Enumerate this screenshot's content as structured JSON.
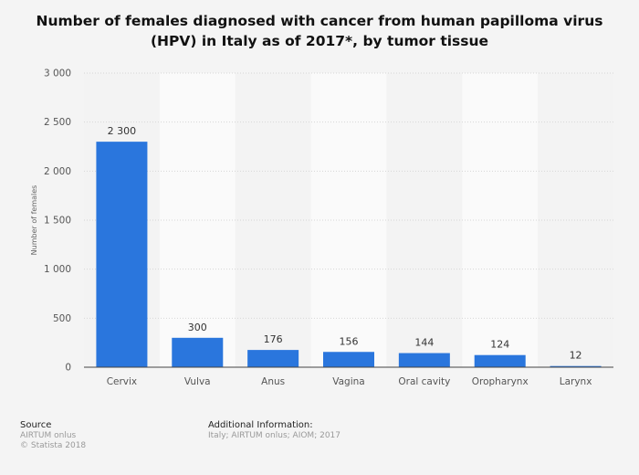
{
  "title_line1": "Number of females diagnosed with cancer from human papilloma virus",
  "title_line2": "(HPV) in Italy as of 2017*, by tumor tissue",
  "chart_data": {
    "type": "bar",
    "categories": [
      "Cervix",
      "Vulva",
      "Anus",
      "Vagina",
      "Oral cavity",
      "Oropharynx",
      "Larynx"
    ],
    "values": [
      2300,
      300,
      176,
      156,
      144,
      124,
      12
    ],
    "value_labels": [
      "2 300",
      "300",
      "176",
      "156",
      "144",
      "124",
      "12"
    ],
    "ylabel": "Number of females",
    "xlabel": "",
    "ylim": [
      0,
      3000
    ],
    "yticks": [
      0,
      500,
      1000,
      1500,
      2000,
      2500,
      3000
    ],
    "ytick_labels": [
      "0",
      "500",
      "1 000",
      "1 500",
      "2 000",
      "2 500",
      "3 000"
    ],
    "grid": true,
    "bar_color": "#2a76dd"
  },
  "footer": {
    "source_heading": "Source",
    "source_line1": "AIRTUM onlus",
    "source_line2": "© Statista 2018",
    "additional_heading": "Additional Information:",
    "additional_text": "Italy; AIRTUM onlus; AIOM; 2017"
  }
}
